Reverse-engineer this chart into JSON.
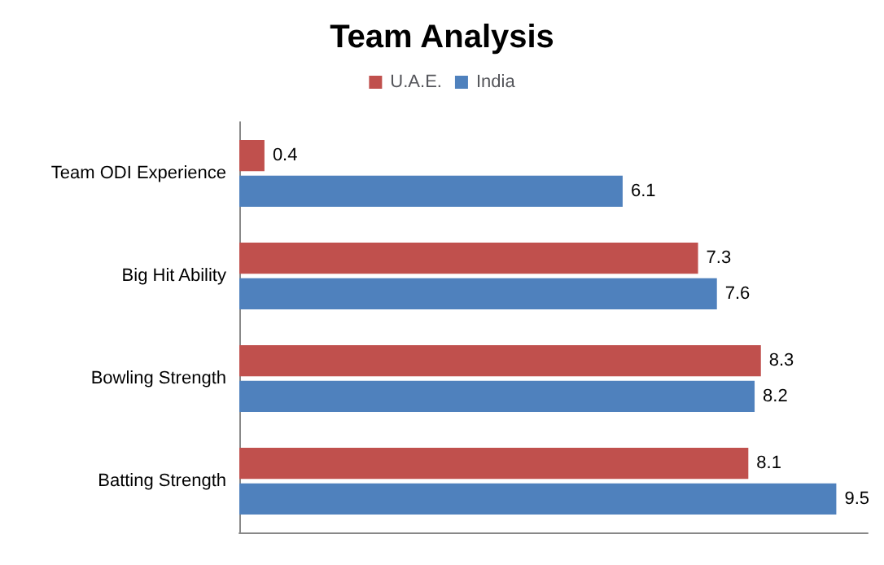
{
  "chart_data": {
    "type": "bar",
    "orientation": "horizontal",
    "title": "Team Analysis",
    "categories": [
      "Team ODI Experience",
      "Big Hit Ability",
      "Bowling Strength",
      "Batting Strength"
    ],
    "series": [
      {
        "name": "U.A.E.",
        "color": "#c0504d",
        "values": [
          0.4,
          7.3,
          8.3,
          8.1
        ]
      },
      {
        "name": "India",
        "color": "#4f81bd",
        "values": [
          6.1,
          7.6,
          8.2,
          9.5
        ]
      }
    ],
    "data_labels": true,
    "legend": "top",
    "grid": false
  }
}
